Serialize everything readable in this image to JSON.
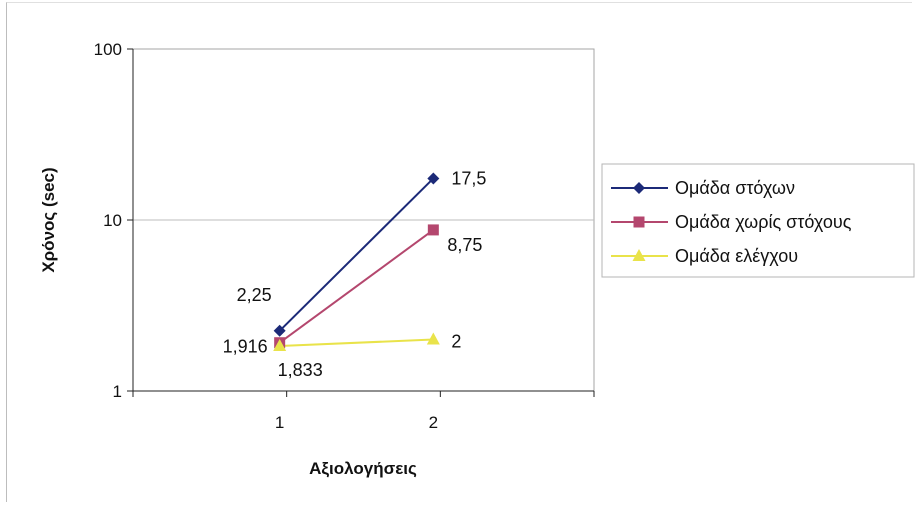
{
  "chart_data": {
    "type": "line",
    "title": "",
    "xlabel": "Αξιολογήσεις",
    "ylabel": "Χρόνος (sec)",
    "y_scale": "log",
    "ylim": [
      1,
      100
    ],
    "y_ticks": [
      "1",
      "10",
      "100"
    ],
    "categories": [
      "1",
      "2"
    ],
    "grid": "horizontal at 10",
    "legend_position": "right",
    "series": [
      {
        "name": "Ομάδα στόχων",
        "values": [
          2.25,
          17.5
        ],
        "labels": [
          "2,25",
          "17,5"
        ],
        "color": "#1c2a78",
        "marker": "diamond"
      },
      {
        "name": "Ομάδα χωρίς στόχους",
        "values": [
          1.916,
          8.75
        ],
        "labels": [
          "1,916",
          "8,75"
        ],
        "color": "#b4476e",
        "marker": "square"
      },
      {
        "name": "Ομάδα ελέγχου",
        "values": [
          1.833,
          2
        ],
        "labels": [
          "1,833",
          "2"
        ],
        "color": "#e9e34a",
        "marker": "triangle"
      }
    ]
  }
}
